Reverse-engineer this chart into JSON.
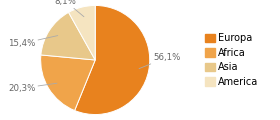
{
  "labels": [
    "Europa",
    "Africa",
    "Asia",
    "America"
  ],
  "values": [
    56.1,
    20.3,
    15.4,
    8.1
  ],
  "colors": [
    "#e8821e",
    "#f0a44a",
    "#e8c88a",
    "#f5e4c0"
  ],
  "pct_labels": [
    "56,1%",
    "20,3%",
    "15,4%",
    "8,1%"
  ],
  "startangle": 90,
  "counterclock": false,
  "legend_fontsize": 7.0,
  "pct_fontsize": 6.2,
  "background_color": "#ffffff"
}
